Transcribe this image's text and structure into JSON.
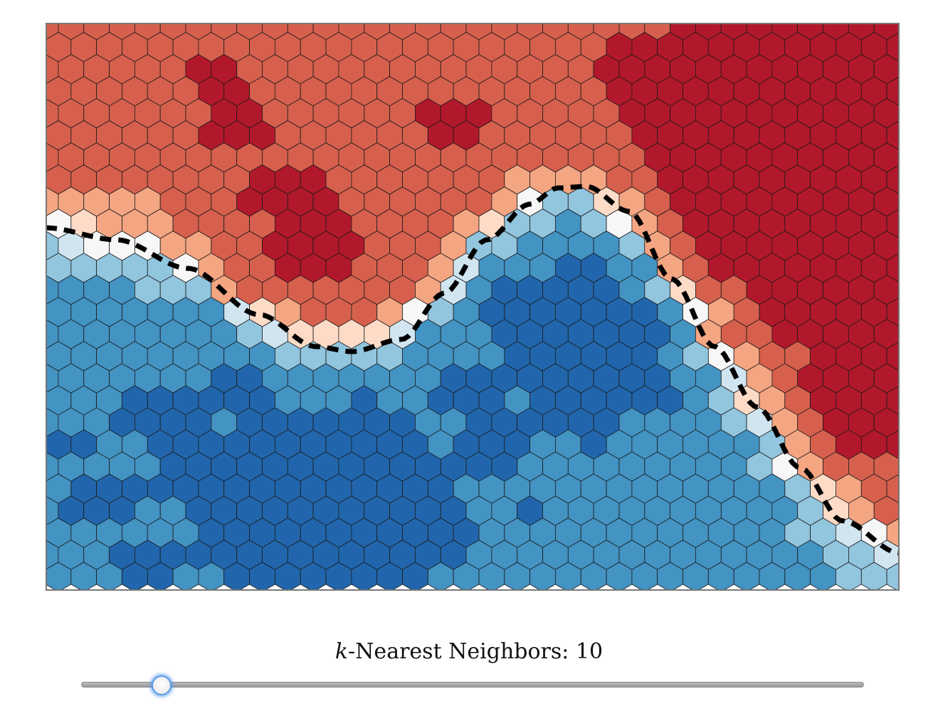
{
  "slider": {
    "label_var": "k",
    "label_text": "-Nearest Neighbors: ",
    "value": "10",
    "min": 1,
    "max": 100,
    "level": 0.103
  },
  "hexgrid": {
    "cols": 34,
    "rows": 26,
    "value_domain": [
      -1,
      1
    ]
  },
  "colors": {
    "red_3": "#b2182b",
    "red_2": "#d6604d",
    "red_1": "#f4a582",
    "red_0": "#fddbc7",
    "neutral": "#f7f7f7",
    "blue_0": "#d1e5f0",
    "blue_1": "#92c5de",
    "blue_2": "#4393c3",
    "blue_3": "#2166ac",
    "frame": "#777777",
    "boundary": "#000000"
  }
}
